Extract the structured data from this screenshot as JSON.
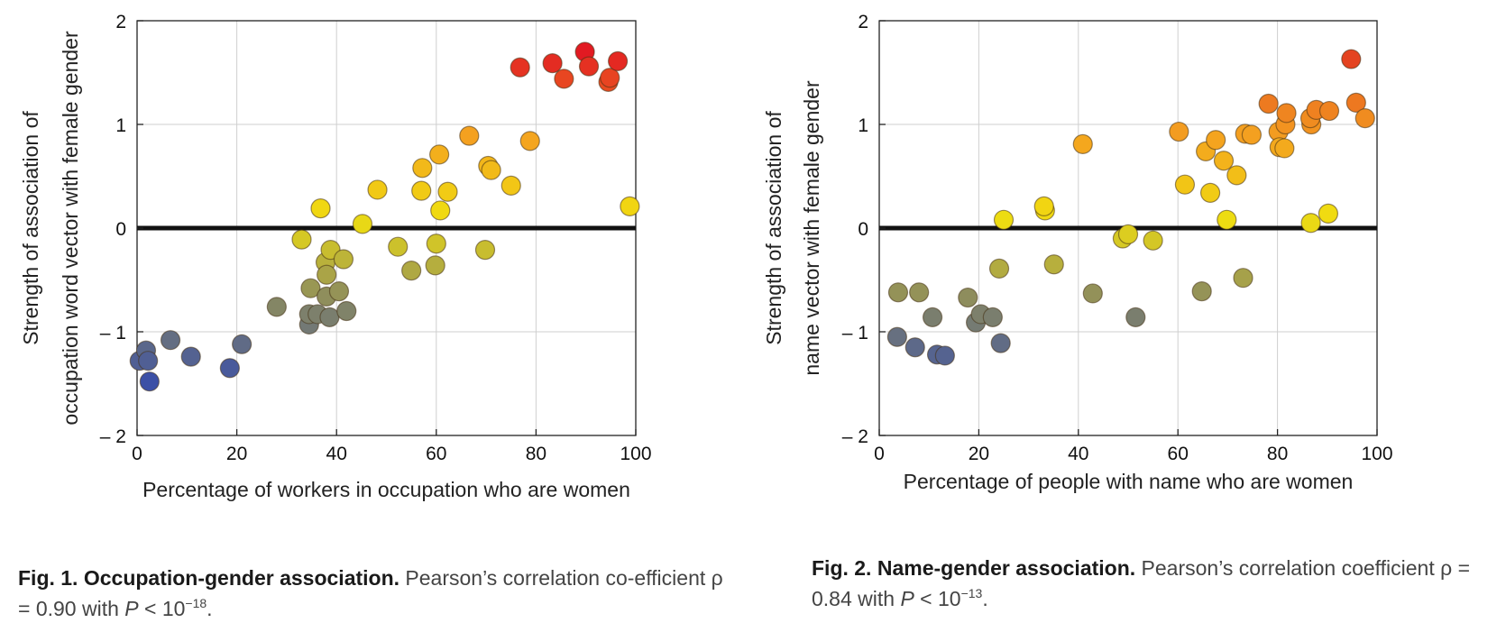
{
  "chart_data": [
    {
      "type": "scatter",
      "xlabel": "Percentage of workers in occupation who are women",
      "ylabel": [
        "Strength of association of",
        "occupation word vector with female gender"
      ],
      "xlim": [
        0,
        100
      ],
      "ylim": [
        -2,
        2
      ],
      "xticks": [
        0,
        20,
        40,
        60,
        80,
        100
      ],
      "yticks": [
        2,
        1,
        0,
        -1,
        -2
      ],
      "ytick_labels": [
        "2",
        "1",
        "0",
        "– 1",
        "– 2"
      ],
      "grid": true,
      "reference_line_y": 0,
      "color_scale": [
        "#3a4fa8",
        "#8a8a60",
        "#f0de10",
        "#f4a020",
        "#e21a22"
      ],
      "points": [
        {
          "x": 0.5,
          "y": -1.28
        },
        {
          "x": 1.8,
          "y": -1.18
        },
        {
          "x": 2.2,
          "y": -1.28
        },
        {
          "x": 2.5,
          "y": -1.48
        },
        {
          "x": 6.7,
          "y": -1.08
        },
        {
          "x": 10.8,
          "y": -1.24
        },
        {
          "x": 18.6,
          "y": -1.35
        },
        {
          "x": 21.0,
          "y": -1.12
        },
        {
          "x": 28.0,
          "y": -0.76
        },
        {
          "x": 33.0,
          "y": -0.11
        },
        {
          "x": 34.5,
          "y": -0.93
        },
        {
          "x": 34.5,
          "y": -0.83
        },
        {
          "x": 34.8,
          "y": -0.58
        },
        {
          "x": 36.2,
          "y": -0.83
        },
        {
          "x": 36.8,
          "y": 0.19
        },
        {
          "x": 37.8,
          "y": -0.33
        },
        {
          "x": 38.0,
          "y": -0.45
        },
        {
          "x": 38.0,
          "y": -0.66
        },
        {
          "x": 38.6,
          "y": -0.86
        },
        {
          "x": 38.8,
          "y": -0.21
        },
        {
          "x": 40.5,
          "y": -0.61
        },
        {
          "x": 41.4,
          "y": -0.3
        },
        {
          "x": 42.0,
          "y": -0.8
        },
        {
          "x": 45.2,
          "y": 0.04
        },
        {
          "x": 48.2,
          "y": 0.37
        },
        {
          "x": 52.3,
          "y": -0.18
        },
        {
          "x": 55.0,
          "y": -0.41
        },
        {
          "x": 57.0,
          "y": 0.36
        },
        {
          "x": 57.2,
          "y": 0.58
        },
        {
          "x": 59.8,
          "y": -0.36
        },
        {
          "x": 60.0,
          "y": -0.15
        },
        {
          "x": 60.6,
          "y": 0.71
        },
        {
          "x": 60.8,
          "y": 0.17
        },
        {
          "x": 62.3,
          "y": 0.35
        },
        {
          "x": 66.6,
          "y": 0.89
        },
        {
          "x": 69.8,
          "y": -0.21
        },
        {
          "x": 70.4,
          "y": 0.6
        },
        {
          "x": 71.0,
          "y": 0.56
        },
        {
          "x": 75.0,
          "y": 0.41
        },
        {
          "x": 76.8,
          "y": 1.55
        },
        {
          "x": 78.8,
          "y": 0.84
        },
        {
          "x": 83.3,
          "y": 1.59
        },
        {
          "x": 85.6,
          "y": 1.44
        },
        {
          "x": 89.8,
          "y": 1.7
        },
        {
          "x": 90.6,
          "y": 1.56
        },
        {
          "x": 94.5,
          "y": 1.41
        },
        {
          "x": 94.8,
          "y": 1.45
        },
        {
          "x": 96.4,
          "y": 1.61
        },
        {
          "x": 98.8,
          "y": 0.21
        }
      ]
    },
    {
      "type": "scatter",
      "xlabel": "Percentage of people with name who are women",
      "ylabel": [
        "Strength of association of",
        "name vector with female gender"
      ],
      "xlim": [
        0,
        100
      ],
      "ylim": [
        -2,
        2
      ],
      "xticks": [
        0,
        20,
        40,
        60,
        80,
        100
      ],
      "yticks": [
        2,
        1,
        0,
        -1,
        -2
      ],
      "ytick_labels": [
        "2",
        "1",
        "0",
        "– 1",
        "– 2"
      ],
      "grid": true,
      "reference_line_y": 0,
      "color_scale": [
        "#3a4fa8",
        "#8a8a60",
        "#f0de10",
        "#f4a020",
        "#e23a20"
      ],
      "points": [
        {
          "x": 3.6,
          "y": -1.05
        },
        {
          "x": 3.8,
          "y": -0.62
        },
        {
          "x": 7.2,
          "y": -1.15
        },
        {
          "x": 8.0,
          "y": -0.62
        },
        {
          "x": 10.7,
          "y": -0.86
        },
        {
          "x": 11.6,
          "y": -1.22
        },
        {
          "x": 13.2,
          "y": -1.23
        },
        {
          "x": 17.8,
          "y": -0.67
        },
        {
          "x": 19.4,
          "y": -0.91
        },
        {
          "x": 20.4,
          "y": -0.83
        },
        {
          "x": 22.8,
          "y": -0.86
        },
        {
          "x": 24.1,
          "y": -0.39
        },
        {
          "x": 24.4,
          "y": -1.11
        },
        {
          "x": 25.0,
          "y": 0.08
        },
        {
          "x": 33.3,
          "y": 0.17
        },
        {
          "x": 33.1,
          "y": 0.21
        },
        {
          "x": 35.1,
          "y": -0.35
        },
        {
          "x": 40.9,
          "y": 0.81
        },
        {
          "x": 42.9,
          "y": -0.63
        },
        {
          "x": 48.9,
          "y": -0.1
        },
        {
          "x": 50.0,
          "y": -0.06
        },
        {
          "x": 51.5,
          "y": -0.86
        },
        {
          "x": 55.0,
          "y": -0.12
        },
        {
          "x": 60.2,
          "y": 0.93
        },
        {
          "x": 61.4,
          "y": 0.42
        },
        {
          "x": 64.8,
          "y": -0.61
        },
        {
          "x": 65.6,
          "y": 0.74
        },
        {
          "x": 66.5,
          "y": 0.34
        },
        {
          "x": 67.6,
          "y": 0.85
        },
        {
          "x": 69.2,
          "y": 0.65
        },
        {
          "x": 69.8,
          "y": 0.08
        },
        {
          "x": 71.8,
          "y": 0.51
        },
        {
          "x": 73.1,
          "y": -0.48
        },
        {
          "x": 73.5,
          "y": 0.91
        },
        {
          "x": 74.8,
          "y": 0.9
        },
        {
          "x": 78.2,
          "y": 1.2
        },
        {
          "x": 80.2,
          "y": 0.93
        },
        {
          "x": 80.4,
          "y": 0.78
        },
        {
          "x": 81.6,
          "y": 1.0
        },
        {
          "x": 81.4,
          "y": 0.77
        },
        {
          "x": 81.8,
          "y": 1.11
        },
        {
          "x": 86.7,
          "y": 0.05
        },
        {
          "x": 86.8,
          "y": 1.0
        },
        {
          "x": 86.6,
          "y": 1.06
        },
        {
          "x": 87.8,
          "y": 1.14
        },
        {
          "x": 90.2,
          "y": 0.14
        },
        {
          "x": 90.4,
          "y": 1.13
        },
        {
          "x": 94.8,
          "y": 1.63
        },
        {
          "x": 95.8,
          "y": 1.21
        },
        {
          "x": 97.6,
          "y": 1.06
        }
      ]
    }
  ],
  "captions": [
    {
      "label": "Fig. 1. Occupation-gender association.",
      "text_a": "Pearson’s correlation co-efficient ρ = 0.90 with ",
      "p_symbol": "P",
      "text_b": " < 10",
      "exponent": "−18",
      "text_c": "."
    },
    {
      "label": "Fig. 2. Name-gender association.",
      "text_a": "Pearson’s correlation coefficient ρ = 0.84 with ",
      "p_symbol": "P",
      "text_b": " < 10",
      "exponent": "−13",
      "text_c": "."
    }
  ]
}
